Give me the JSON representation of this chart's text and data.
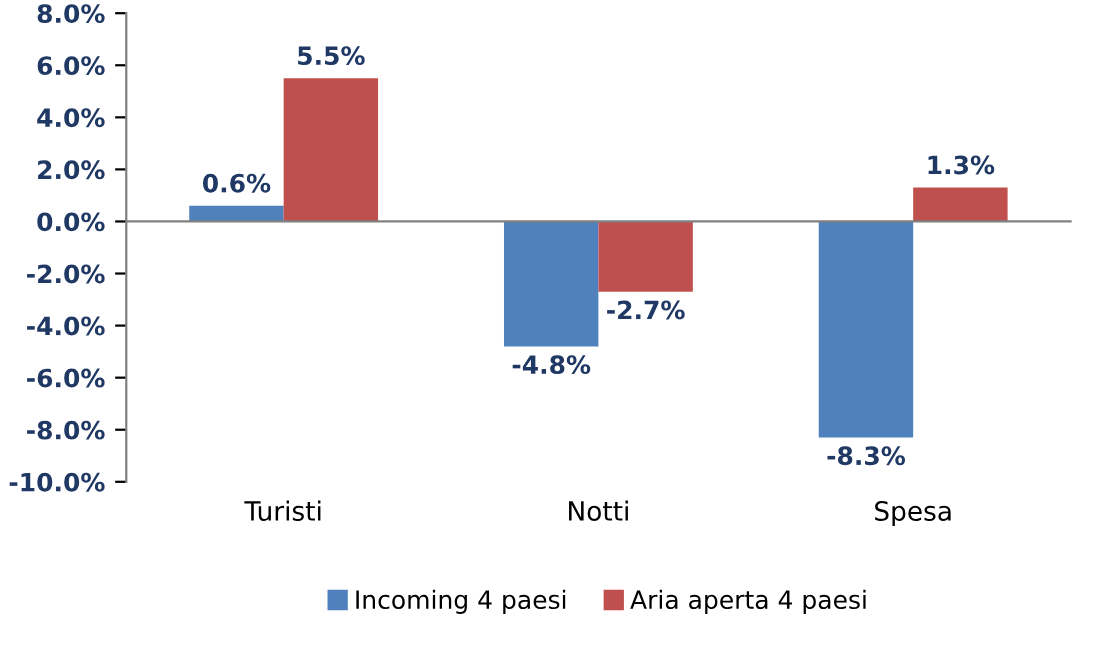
{
  "chart_data": {
    "type": "bar",
    "categories": [
      "Turisti",
      "Notti",
      "Spesa"
    ],
    "series": [
      {
        "name": "Incoming 4 paesi",
        "color": "#4f81bd",
        "values": [
          0.6,
          -4.8,
          -8.3
        ],
        "value_labels": [
          "0.6%",
          "-4.8%",
          "-8.3%"
        ]
      },
      {
        "name": "Aria aperta 4 paesi",
        "color": "#c0504d",
        "values": [
          5.5,
          -2.7,
          1.3
        ],
        "value_labels": [
          "5.5%",
          "-2.7%",
          "1.3%"
        ]
      }
    ],
    "ylim": [
      -10,
      8
    ],
    "yticks": [
      {
        "value": -10,
        "label": "-10.0%"
      },
      {
        "value": -8,
        "label": "-8.0%"
      },
      {
        "value": -6,
        "label": "-6.0%"
      },
      {
        "value": -4,
        "label": "-4.0%"
      },
      {
        "value": -2,
        "label": "-2.0%"
      },
      {
        "value": 0,
        "label": "0.0%"
      },
      {
        "value": 2,
        "label": "2.0%"
      },
      {
        "value": 4,
        "label": "4.0%"
      },
      {
        "value": 6,
        "label": "6.0%"
      },
      {
        "value": 8,
        "label": "8.0%"
      }
    ],
    "legend": "bottom"
  }
}
